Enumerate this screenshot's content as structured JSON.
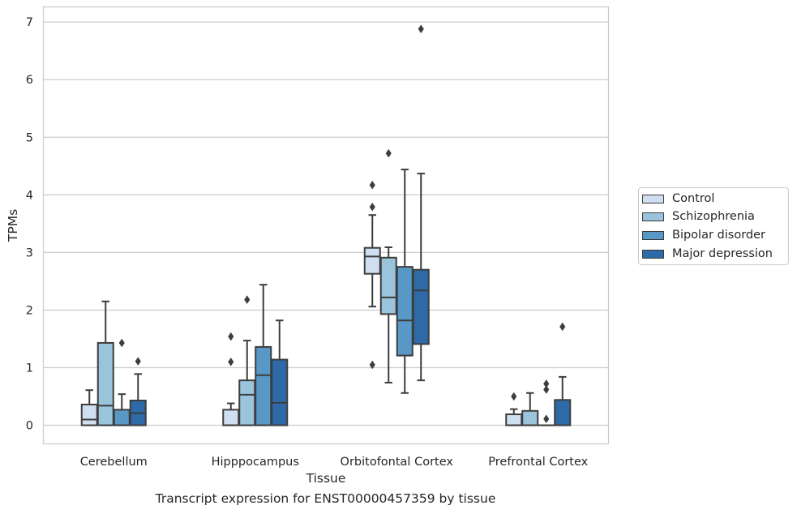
{
  "chart_data": {
    "type": "box",
    "caption": "Transcript expression for ENST00000457359 by tissue",
    "xlabel": "Tissue",
    "ylabel": "TPMs",
    "ylim": [
      -0.33,
      7.27
    ],
    "yticks": [
      0,
      1,
      2,
      3,
      4,
      5,
      6,
      7
    ],
    "grid": true,
    "legend_position": "right",
    "categories": [
      "Cerebellum",
      "Hipppocampus",
      "Orbitofontal Cortex",
      "Prefrontal Cortex"
    ],
    "series": [
      {
        "name": "Control",
        "color": "#cfdef0",
        "boxes": [
          {
            "whislo": 0.0,
            "q1": 0.0,
            "med": 0.1,
            "q3": 0.36,
            "whishi": 0.61,
            "fliers": []
          },
          {
            "whislo": 0.0,
            "q1": 0.0,
            "med": 0.0,
            "q3": 0.27,
            "whishi": 0.38,
            "fliers": [
              1.1,
              1.54
            ]
          },
          {
            "whislo": 2.06,
            "q1": 2.63,
            "med": 2.93,
            "q3": 3.08,
            "whishi": 3.65,
            "fliers": [
              1.05,
              3.79,
              4.17
            ]
          },
          {
            "whislo": 0.0,
            "q1": 0.0,
            "med": 0.0,
            "q3": 0.19,
            "whishi": 0.28,
            "fliers": [
              0.5
            ]
          }
        ]
      },
      {
        "name": "Schizophrenia",
        "color": "#9ac3dc",
        "boxes": [
          {
            "whislo": 0.0,
            "q1": 0.0,
            "med": 0.34,
            "q3": 1.43,
            "whishi": 2.15,
            "fliers": []
          },
          {
            "whislo": 0.0,
            "q1": 0.0,
            "med": 0.53,
            "q3": 0.78,
            "whishi": 1.47,
            "fliers": [
              2.18
            ]
          },
          {
            "whislo": 0.74,
            "q1": 1.93,
            "med": 2.22,
            "q3": 2.91,
            "whishi": 3.09,
            "fliers": [
              4.72
            ]
          },
          {
            "whislo": 0.0,
            "q1": 0.0,
            "med": 0.0,
            "q3": 0.25,
            "whishi": 0.56,
            "fliers": []
          }
        ]
      },
      {
        "name": "Bipolar disorder",
        "color": "#5898c7",
        "boxes": [
          {
            "whislo": 0.0,
            "q1": 0.0,
            "med": 0.0,
            "q3": 0.27,
            "whishi": 0.54,
            "fliers": [
              1.43
            ]
          },
          {
            "whislo": 0.0,
            "q1": 0.0,
            "med": 0.87,
            "q3": 1.36,
            "whishi": 2.44,
            "fliers": []
          },
          {
            "whislo": 0.56,
            "q1": 1.21,
            "med": 1.82,
            "q3": 2.75,
            "whishi": 4.44,
            "fliers": []
          },
          {
            "whislo": 0.0,
            "q1": 0.0,
            "med": 0.0,
            "q3": 0.0,
            "whishi": 0.0,
            "fliers": [
              0.11,
              0.62,
              0.72
            ]
          }
        ]
      },
      {
        "name": "Major depression",
        "color": "#2e6aa8",
        "boxes": [
          {
            "whislo": 0.0,
            "q1": 0.0,
            "med": 0.21,
            "q3": 0.43,
            "whishi": 0.89,
            "fliers": [
              1.11
            ]
          },
          {
            "whislo": 0.0,
            "q1": 0.0,
            "med": 0.39,
            "q3": 1.14,
            "whishi": 1.82,
            "fliers": []
          },
          {
            "whislo": 0.78,
            "q1": 1.41,
            "med": 2.34,
            "q3": 2.7,
            "whishi": 4.37,
            "fliers": [
              6.88
            ]
          },
          {
            "whislo": 0.0,
            "q1": 0.0,
            "med": 0.0,
            "q3": 0.44,
            "whishi": 0.84,
            "fliers": [
              1.71
            ]
          }
        ]
      }
    ]
  }
}
